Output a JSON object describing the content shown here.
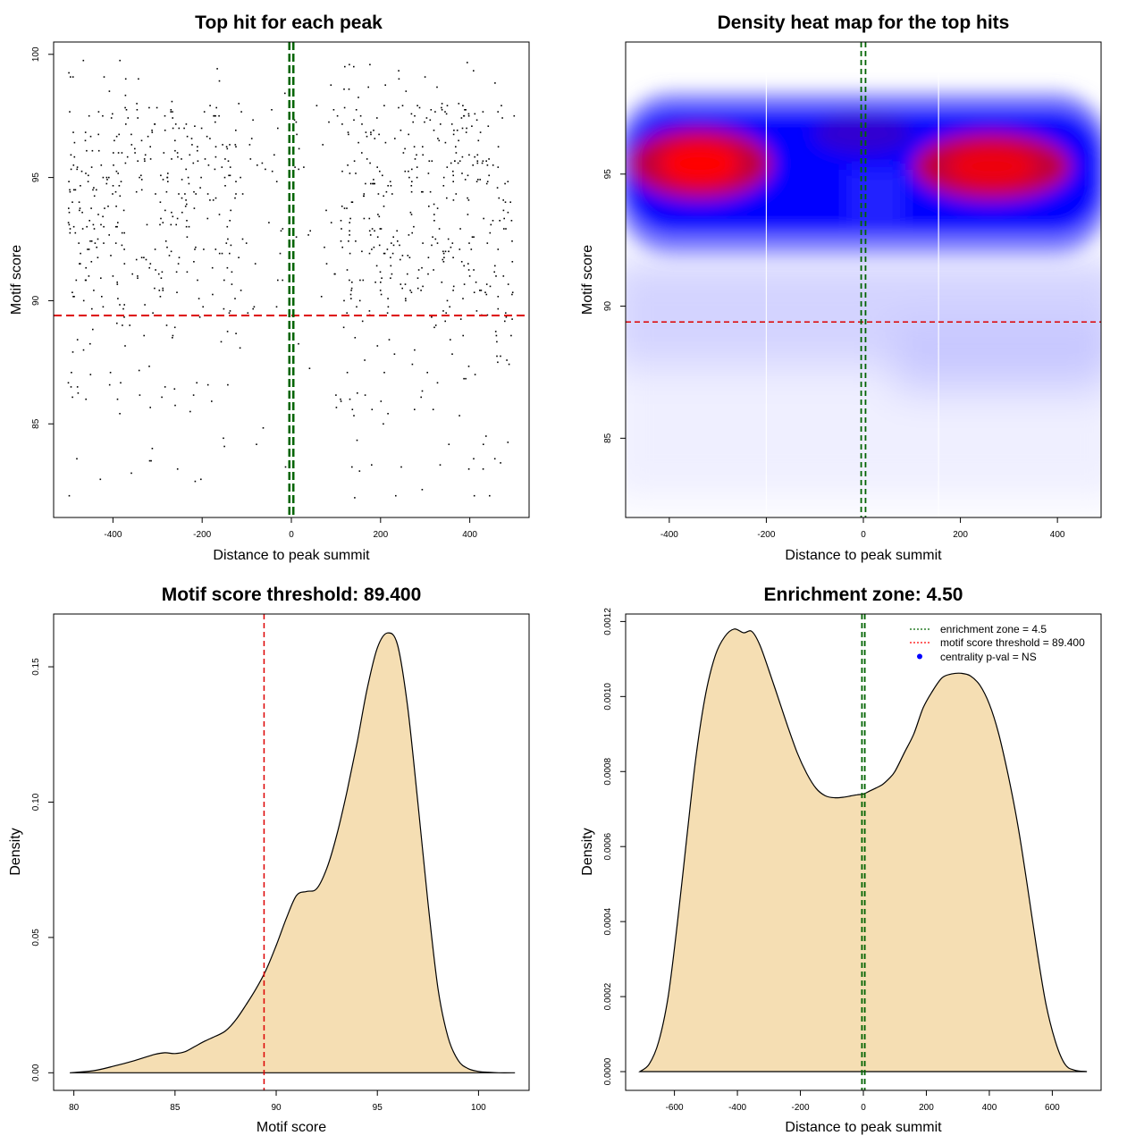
{
  "chart_data": [
    {
      "id": "scatter",
      "type": "scatter",
      "title": "Top hit for each peak",
      "xlabel": "Distance to peak summit",
      "ylabel": "Motif score",
      "xlim": [
        -533,
        533
      ],
      "ylim": [
        81.2,
        100.5
      ],
      "xticks": [
        -400,
        -200,
        0,
        200,
        400
      ],
      "yticks": [
        85,
        90,
        95,
        100
      ],
      "xtick_labels": [
        "-400",
        "-200",
        "0",
        "200",
        "400"
      ],
      "ytick_labels": [
        "85",
        "90",
        "95",
        "100"
      ],
      "threshold_y": 89.4,
      "center_lines_x": [
        -4.5,
        4.5
      ],
      "n_points": 900,
      "point_distribution": "x uniform in [-500, 500], concentrated at |x| > 100; y mostly 89.4-98, sparse low scores to 82"
    },
    {
      "id": "heatmap",
      "type": "heatmap",
      "title": "Density heat map for the top hits",
      "xlabel": "Distance to peak summit",
      "ylabel": "Motif score",
      "xlim": [
        -490,
        490
      ],
      "ylim": [
        82.0,
        100.0
      ],
      "xticks": [
        -400,
        -200,
        0,
        200,
        400
      ],
      "yticks": [
        85,
        90,
        95
      ],
      "xtick_labels": [
        "-400",
        "-200",
        "0",
        "200",
        "400"
      ],
      "ytick_labels": [
        "85",
        "90",
        "95"
      ],
      "threshold_y": 89.4,
      "center_lines_x": [
        -4.5,
        4.5
      ],
      "white_lines_x": [
        -200,
        155
      ],
      "hot_spots": [
        {
          "x": -330,
          "y": 95.1,
          "intensity": 1.0
        },
        {
          "x": 270,
          "y": 95.1,
          "intensity": 0.95
        }
      ],
      "colors": [
        "#ffffff",
        "#0000ff",
        "#ff0000"
      ]
    },
    {
      "id": "score_density",
      "type": "area",
      "title": "Motif score threshold: 89.400",
      "xlabel": "Motif score",
      "ylabel": "Density",
      "xlim": [
        79.0,
        102.5
      ],
      "ylim": [
        -0.0065,
        0.1695
      ],
      "xticks": [
        80,
        85,
        90,
        95,
        100
      ],
      "yticks": [
        0.0,
        0.05,
        0.1,
        0.15
      ],
      "xtick_labels": [
        "80",
        "85",
        "90",
        "95",
        "100"
      ],
      "ytick_labels": [
        "0.00",
        "0.05",
        "0.10",
        "0.15"
      ],
      "threshold_x": 89.4,
      "fill": "#f5deb3",
      "x": [
        79.8,
        81.0,
        82.0,
        83.0,
        84.0,
        84.5,
        85.0,
        85.5,
        86.0,
        86.5,
        87.0,
        87.5,
        88.0,
        88.5,
        89.0,
        89.5,
        90.0,
        90.5,
        91.0,
        91.5,
        92.0,
        92.5,
        93.0,
        93.5,
        94.0,
        94.5,
        95.0,
        95.5,
        96.0,
        96.5,
        97.0,
        97.5,
        98.0,
        98.5,
        99.0,
        99.5,
        100.0,
        100.5,
        101.0,
        101.8
      ],
      "y": [
        0.0,
        0.0008,
        0.0025,
        0.0045,
        0.0068,
        0.0074,
        0.0071,
        0.0078,
        0.0098,
        0.0118,
        0.0135,
        0.0155,
        0.0195,
        0.025,
        0.031,
        0.038,
        0.047,
        0.057,
        0.0655,
        0.067,
        0.068,
        0.0755,
        0.088,
        0.104,
        0.122,
        0.142,
        0.157,
        0.1625,
        0.158,
        0.135,
        0.1,
        0.063,
        0.031,
        0.013,
        0.0045,
        0.0015,
        0.0005,
        0.0002,
        0.0,
        0.0
      ]
    },
    {
      "id": "distance_density",
      "type": "area",
      "title": "Enrichment zone: 4.50",
      "xlabel": "Distance to peak summit",
      "ylabel": "Density",
      "xlim": [
        -755,
        755
      ],
      "ylim": [
        -5e-05,
        0.00122
      ],
      "xticks": [
        -600,
        -400,
        -200,
        0,
        200,
        400,
        600
      ],
      "yticks": [
        0.0,
        0.0002,
        0.0004,
        0.0006,
        0.0008,
        0.001,
        0.0012
      ],
      "xtick_labels": [
        "-600",
        "-400",
        "-200",
        "0",
        "200",
        "400",
        "600"
      ],
      "ytick_labels": [
        "0.0000",
        "0.0002",
        "0.0004",
        "0.0006",
        "0.0008",
        "0.0010",
        "0.0012"
      ],
      "enrichment_lines_x": [
        -4.5,
        4.5
      ],
      "fill": "#f5deb3",
      "x": [
        -710,
        -680,
        -650,
        -620,
        -590,
        -560,
        -530,
        -500,
        -470,
        -440,
        -410,
        -380,
        -355,
        -330,
        -300,
        -270,
        -240,
        -210,
        -180,
        -150,
        -120,
        -90,
        -60,
        -40,
        -20,
        0,
        20,
        40,
        60,
        80,
        100,
        130,
        160,
        190,
        220,
        250,
        280,
        310,
        340,
        370,
        400,
        430,
        460,
        490,
        520,
        550,
        580,
        610,
        640,
        670,
        710
      ],
      "y": [
        0.0,
        2e-05,
        8e-05,
        0.0002,
        0.0004,
        0.00063,
        0.00085,
        0.00101,
        0.00111,
        0.00116,
        0.00118,
        0.00117,
        0.001174,
        0.00114,
        0.00107,
        0.000995,
        0.00092,
        0.00085,
        0.000795,
        0.000755,
        0.000735,
        0.00073,
        0.000732,
        0.000735,
        0.000738,
        0.00074,
        0.000748,
        0.000756,
        0.000765,
        0.00078,
        0.0008,
        0.00085,
        0.0009,
        0.00097,
        0.001015,
        0.00105,
        0.00106,
        0.001062,
        0.001055,
        0.00103,
        0.00098,
        0.0009,
        0.00079,
        0.00066,
        0.0005,
        0.00033,
        0.00018,
        8e-05,
        2e-05,
        4e-06,
        0.0
      ],
      "legend": {
        "position": "top-right",
        "entries": [
          {
            "label": "enrichment zone = 4.5",
            "color": "#006400",
            "style": "dotted-line"
          },
          {
            "label": "motif score threshold = 89.400",
            "color": "#ff0000",
            "style": "dotted-line"
          },
          {
            "label": "centrality p-val = NS",
            "color": "#0000ff",
            "style": "dot"
          }
        ]
      }
    }
  ]
}
